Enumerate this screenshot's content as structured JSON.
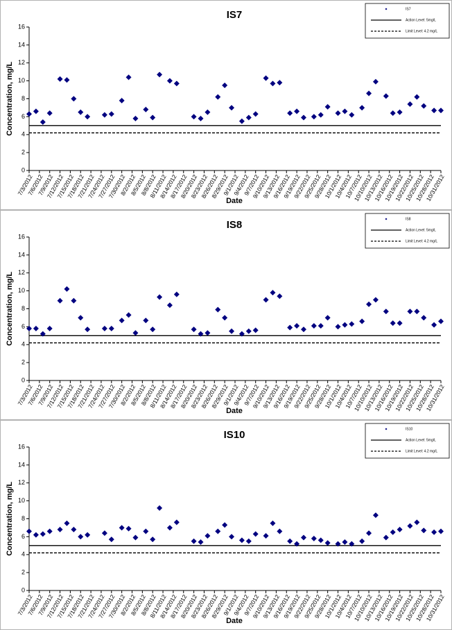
{
  "chart_data": [
    {
      "type": "scatter",
      "title": "IS7",
      "x_label": "Date",
      "y_label": "Concentration, mg/L",
      "xlim": [
        "7/3/2012",
        "10/31/2012"
      ],
      "xticks": [
        "7/3/2012",
        "7/6/2012",
        "7/9/2012",
        "7/12/2012",
        "7/15/2012",
        "7/18/2012",
        "7/21/2012",
        "7/24/2012",
        "7/27/2012",
        "7/30/2012",
        "8/2/2012",
        "8/5/2012",
        "8/8/2012",
        "8/11/2012",
        "8/14/2012",
        "8/17/2012",
        "8/20/2012",
        "8/23/2012",
        "8/26/2012",
        "8/29/2012",
        "9/1/2012",
        "9/4/2012",
        "9/7/2012",
        "9/10/2012",
        "9/13/2012",
        "9/16/2012",
        "9/19/2012",
        "9/22/2012",
        "9/25/2012",
        "9/28/2012",
        "10/1/2012",
        "10/4/2012",
        "10/7/2012",
        "10/10/2012",
        "10/13/2012",
        "10/16/2012",
        "10/19/2012",
        "10/22/2012",
        "10/25/2012",
        "10/28/2012",
        "10/31/2012"
      ],
      "ylim": [
        0,
        16
      ],
      "yticks": [
        0,
        2,
        4,
        6,
        8,
        10,
        12,
        14,
        16
      ],
      "grid": false,
      "legend": "upper right",
      "x": [
        "7/3/2012",
        "7/5/2012",
        "7/7/2012",
        "7/9/2012",
        "7/12/2012",
        "7/14/2012",
        "7/16/2012",
        "7/18/2012",
        "7/20/2012",
        "7/25/2012",
        "7/27/2012",
        "7/30/2012",
        "8/1/2012",
        "8/3/2012",
        "8/6/2012",
        "8/8/2012",
        "8/10/2012",
        "8/13/2012",
        "8/15/2012",
        "8/20/2012",
        "8/22/2012",
        "8/24/2012",
        "8/27/2012",
        "8/29/2012",
        "8/31/2012",
        "9/3/2012",
        "9/5/2012",
        "9/7/2012",
        "9/10/2012",
        "9/12/2012",
        "9/14/2012",
        "9/17/2012",
        "9/19/2012",
        "9/21/2012",
        "9/24/2012",
        "9/26/2012",
        "9/28/2012",
        "10/1/2012",
        "10/3/2012",
        "10/5/2012",
        "10/8/2012",
        "10/10/2012",
        "10/12/2012",
        "10/15/2012",
        "10/17/2012",
        "10/19/2012",
        "10/22/2012",
        "10/24/2012",
        "10/26/2012",
        "10/29/2012",
        "10/31/2012"
      ],
      "series": [
        {
          "name": "IS7",
          "color": "#000080",
          "values": [
            6.3,
            6.6,
            5.4,
            6.4,
            10.2,
            10.1,
            8.0,
            6.5,
            6.0,
            6.2,
            6.3,
            7.8,
            10.4,
            5.8,
            6.8,
            5.9,
            10.7,
            10.0,
            9.7,
            6.0,
            5.8,
            6.5,
            8.2,
            9.5,
            7.0,
            5.5,
            5.9,
            6.3,
            10.3,
            9.7,
            9.8,
            6.4,
            6.6,
            5.9,
            6.0,
            6.2,
            7.1,
            6.4,
            6.6,
            6.2,
            7.0,
            8.6,
            9.9,
            8.3,
            6.4,
            6.5,
            7.4,
            8.2,
            7.2,
            6.7,
            6.7
          ]
        }
      ],
      "reference_lines": [
        {
          "name": "Action Level: 5mg/L",
          "value": 5,
          "style": "solid",
          "color": "#000000"
        },
        {
          "name": "Limit Level: 4.2 mg/L",
          "value": 4.2,
          "style": "dashed",
          "color": "#000000"
        }
      ]
    },
    {
      "type": "scatter",
      "title": "IS8",
      "x_label": "Date",
      "y_label": "Concentration, mg/L",
      "xlim": [
        "7/3/2012",
        "10/31/2012"
      ],
      "xticks": [
        "7/3/2012",
        "7/6/2012",
        "7/9/2012",
        "7/12/2012",
        "7/15/2012",
        "7/18/2012",
        "7/21/2012",
        "7/24/2012",
        "7/27/2012",
        "7/30/2012",
        "8/2/2012",
        "8/5/2012",
        "8/8/2012",
        "8/11/2012",
        "8/14/2012",
        "8/17/2012",
        "8/20/2012",
        "8/23/2012",
        "8/26/2012",
        "8/29/2012",
        "9/1/2012",
        "9/4/2012",
        "9/7/2012",
        "9/10/2012",
        "9/13/2012",
        "9/16/2012",
        "9/19/2012",
        "9/22/2012",
        "9/25/2012",
        "9/28/2012",
        "10/1/2012",
        "10/4/2012",
        "10/7/2012",
        "10/10/2012",
        "10/13/2012",
        "10/16/2012",
        "10/19/2012",
        "10/22/2012",
        "10/25/2012",
        "10/28/2012",
        "10/31/2012"
      ],
      "ylim": [
        0,
        16
      ],
      "yticks": [
        0,
        2,
        4,
        6,
        8,
        10,
        12,
        14,
        16
      ],
      "grid": false,
      "legend": "upper right",
      "x": [
        "7/3/2012",
        "7/5/2012",
        "7/7/2012",
        "7/9/2012",
        "7/12/2012",
        "7/14/2012",
        "7/16/2012",
        "7/18/2012",
        "7/20/2012",
        "7/25/2012",
        "7/27/2012",
        "7/30/2012",
        "8/1/2012",
        "8/3/2012",
        "8/6/2012",
        "8/8/2012",
        "8/10/2012",
        "8/13/2012",
        "8/15/2012",
        "8/20/2012",
        "8/22/2012",
        "8/24/2012",
        "8/27/2012",
        "8/29/2012",
        "8/31/2012",
        "9/3/2012",
        "9/5/2012",
        "9/7/2012",
        "9/10/2012",
        "9/12/2012",
        "9/14/2012",
        "9/17/2012",
        "9/19/2012",
        "9/21/2012",
        "9/24/2012",
        "9/26/2012",
        "9/28/2012",
        "10/1/2012",
        "10/3/2012",
        "10/5/2012",
        "10/8/2012",
        "10/10/2012",
        "10/12/2012",
        "10/15/2012",
        "10/17/2012",
        "10/19/2012",
        "10/22/2012",
        "10/24/2012",
        "10/26/2012",
        "10/29/2012",
        "10/31/2012"
      ],
      "series": [
        {
          "name": "IS8",
          "color": "#000080",
          "values": [
            5.8,
            5.8,
            5.2,
            5.8,
            8.9,
            10.2,
            8.9,
            7.0,
            5.7,
            5.8,
            5.8,
            6.7,
            7.3,
            5.3,
            6.7,
            5.7,
            9.3,
            8.4,
            9.6,
            5.7,
            5.2,
            5.3,
            7.9,
            7.0,
            5.5,
            5.2,
            5.5,
            5.6,
            9.0,
            9.8,
            9.4,
            5.9,
            6.1,
            5.7,
            6.1,
            6.1,
            7.0,
            6.0,
            6.2,
            6.3,
            6.6,
            8.5,
            9.0,
            7.7,
            6.4,
            6.4,
            7.7,
            7.7,
            7.0,
            6.2,
            6.6
          ]
        }
      ],
      "reference_lines": [
        {
          "name": "Action Level: 5mg/L",
          "value": 5,
          "style": "solid",
          "color": "#000000"
        },
        {
          "name": "Limit Level: 4.2 mg/L",
          "value": 4.2,
          "style": "dashed",
          "color": "#000000"
        }
      ]
    },
    {
      "type": "scatter",
      "title": "IS10",
      "x_label": "Date",
      "y_label": "Concentration, mg/L",
      "xlim": [
        "7/3/2012",
        "10/31/2012"
      ],
      "xticks": [
        "7/3/2012",
        "7/6/2012",
        "7/9/2012",
        "7/12/2012",
        "7/15/2012",
        "7/18/2012",
        "7/21/2012",
        "7/24/2012",
        "7/27/2012",
        "7/30/2012",
        "8/2/2012",
        "8/5/2012",
        "8/8/2012",
        "8/11/2012",
        "8/14/2012",
        "8/17/2012",
        "8/20/2012",
        "8/23/2012",
        "8/26/2012",
        "8/29/2012",
        "9/1/2012",
        "9/4/2012",
        "9/7/2012",
        "9/10/2012",
        "9/13/2012",
        "9/16/2012",
        "9/19/2012",
        "9/22/2012",
        "9/25/2012",
        "9/28/2012",
        "10/1/2012",
        "10/4/2012",
        "10/7/2012",
        "10/10/2012",
        "10/13/2012",
        "10/16/2012",
        "10/19/2012",
        "10/22/2012",
        "10/25/2012",
        "10/28/2012",
        "10/31/2012"
      ],
      "ylim": [
        0,
        16
      ],
      "yticks": [
        0,
        2,
        4,
        6,
        8,
        10,
        12,
        14,
        16
      ],
      "grid": false,
      "legend": "upper right",
      "x": [
        "7/3/2012",
        "7/5/2012",
        "7/7/2012",
        "7/9/2012",
        "7/12/2012",
        "7/14/2012",
        "7/16/2012",
        "7/18/2012",
        "7/20/2012",
        "7/25/2012",
        "7/27/2012",
        "7/30/2012",
        "8/1/2012",
        "8/3/2012",
        "8/6/2012",
        "8/8/2012",
        "8/10/2012",
        "8/13/2012",
        "8/15/2012",
        "8/20/2012",
        "8/22/2012",
        "8/24/2012",
        "8/27/2012",
        "8/29/2012",
        "8/31/2012",
        "9/3/2012",
        "9/5/2012",
        "9/7/2012",
        "9/10/2012",
        "9/12/2012",
        "9/14/2012",
        "9/17/2012",
        "9/19/2012",
        "9/21/2012",
        "9/24/2012",
        "9/26/2012",
        "9/28/2012",
        "10/1/2012",
        "10/3/2012",
        "10/5/2012",
        "10/8/2012",
        "10/10/2012",
        "10/12/2012",
        "10/15/2012",
        "10/17/2012",
        "10/19/2012",
        "10/22/2012",
        "10/24/2012",
        "10/26/2012",
        "10/29/2012",
        "10/31/2012"
      ],
      "series": [
        {
          "name": "IS10",
          "color": "#000080",
          "values": [
            6.6,
            6.2,
            6.3,
            6.6,
            6.8,
            7.5,
            6.8,
            6.0,
            6.2,
            6.4,
            5.7,
            7.0,
            6.9,
            5.9,
            6.6,
            5.7,
            9.2,
            7.0,
            7.6,
            5.5,
            5.4,
            6.1,
            6.6,
            7.3,
            6.0,
            5.6,
            5.5,
            6.3,
            6.1,
            7.5,
            6.6,
            5.5,
            5.2,
            5.9,
            5.8,
            5.6,
            5.3,
            5.2,
            5.4,
            5.2,
            5.5,
            6.4,
            8.4,
            5.9,
            6.5,
            6.8,
            7.2,
            7.6,
            6.7,
            6.5,
            6.6
          ]
        }
      ],
      "reference_lines": [
        {
          "name": "Action Level: 5mg/L",
          "value": 5,
          "style": "solid",
          "color": "#000000"
        },
        {
          "name": "Limit Level: 4.2 mg/L",
          "value": 4.2,
          "style": "dashed",
          "color": "#000000"
        }
      ]
    }
  ]
}
